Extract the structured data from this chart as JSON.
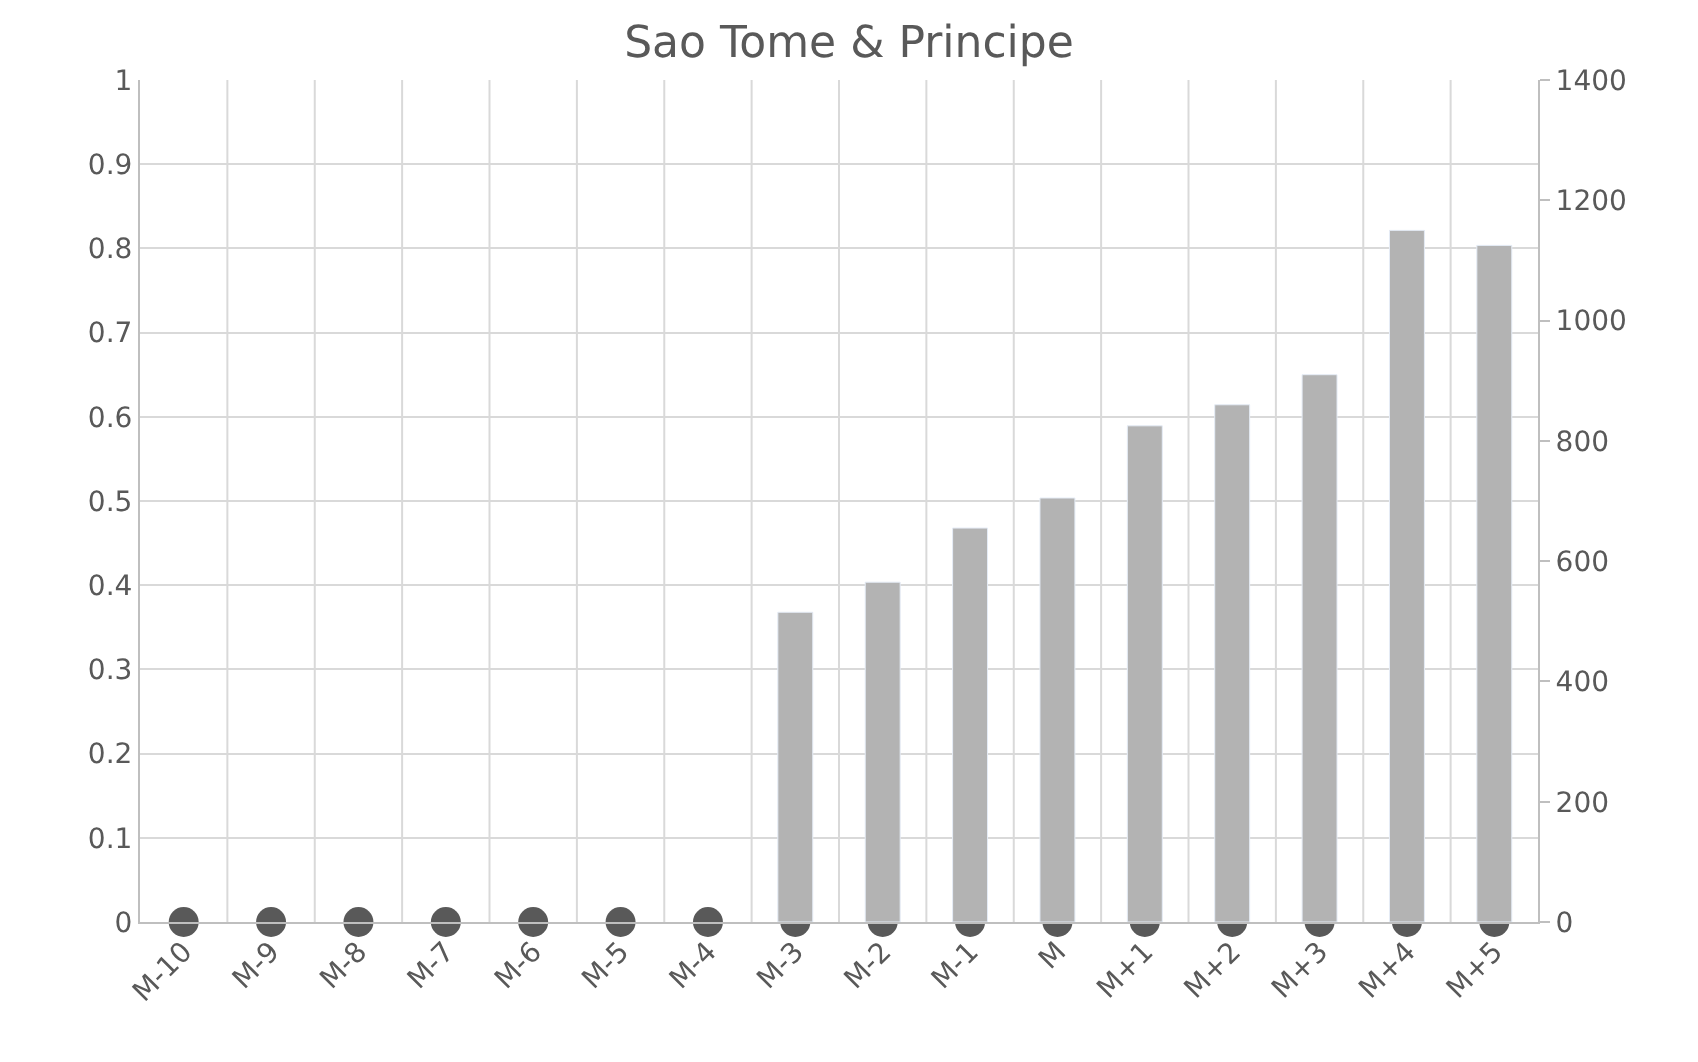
{
  "chart_data": {
    "type": "bar",
    "title": "Sao Tome & Principe",
    "categories": [
      "M-10",
      "M-9",
      "M-8",
      "M-7",
      "M-6",
      "M-5",
      "M-4",
      "M-3",
      "M-2",
      "M-1",
      "M",
      "M+1",
      "M+2",
      "M+3",
      "M+4",
      "M+5"
    ],
    "series": [
      {
        "axis": "y2",
        "color": "#b3b3b3",
        "values": [
          null,
          null,
          null,
          null,
          null,
          null,
          null,
          515,
          565,
          655,
          705,
          825,
          860,
          910,
          1150,
          1125
        ]
      },
      {
        "type": "scatter",
        "color": "#595959",
        "marker": "circle",
        "values": [
          0,
          0,
          0,
          0,
          0,
          0,
          0,
          0,
          0,
          0,
          0,
          0,
          0,
          0,
          0,
          0
        ]
      }
    ],
    "ylim": [
      0,
      1
    ],
    "yticks": [
      0,
      0.1,
      0.2,
      0.3,
      0.4,
      0.5,
      0.6,
      0.7,
      0.8,
      0.9,
      1
    ],
    "y2lim": [
      0,
      1400
    ],
    "y2ticks": [
      0,
      200,
      400,
      600,
      800,
      1000,
      1200,
      1400
    ],
    "grid": true
  }
}
